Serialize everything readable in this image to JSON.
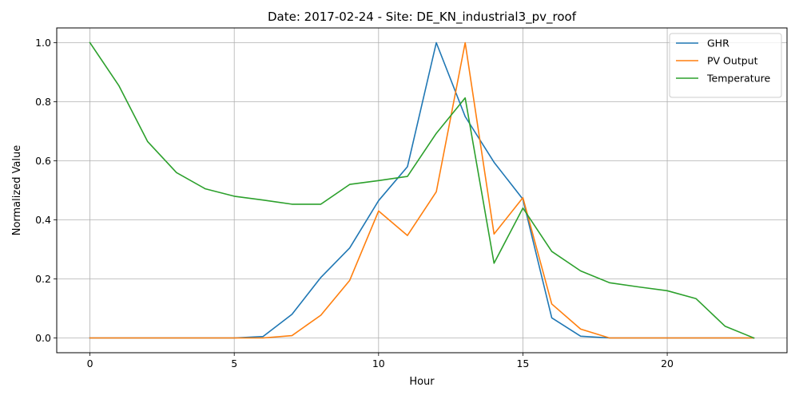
{
  "chart_data": {
    "type": "line",
    "title": "Date: 2017-02-24 - Site: DE_KN_industrial3_pv_roof",
    "xlabel": "Hour",
    "ylabel": "Normalized Value",
    "xlim": [
      -1.15,
      24.15
    ],
    "ylim": [
      -0.05,
      1.05
    ],
    "xticks": [
      0,
      5,
      10,
      15,
      20
    ],
    "yticks": [
      0.0,
      0.2,
      0.4,
      0.6,
      0.8,
      1.0
    ],
    "xtick_labels": [
      "0",
      "5",
      "10",
      "15",
      "20"
    ],
    "ytick_labels": [
      "0.0",
      "0.2",
      "0.4",
      "0.6",
      "0.8",
      "1.0"
    ],
    "grid": true,
    "legend_position": "top-right",
    "x": [
      0,
      1,
      2,
      3,
      4,
      5,
      6,
      7,
      8,
      9,
      10,
      11,
      12,
      13,
      14,
      15,
      16,
      17,
      18,
      19,
      20,
      21,
      22,
      23
    ],
    "series": [
      {
        "name": "GHR",
        "color": "#1f77b4",
        "values": [
          0,
          0,
          0,
          0,
          0,
          0,
          0.005,
          0.08,
          0.205,
          0.305,
          0.465,
          0.58,
          1.0,
          0.75,
          0.595,
          0.47,
          0.068,
          0.006,
          0,
          0,
          0,
          0,
          0,
          0
        ]
      },
      {
        "name": "PV Output",
        "color": "#ff7f0e",
        "values": [
          0,
          0,
          0,
          0,
          0,
          0,
          0,
          0.008,
          0.077,
          0.195,
          0.43,
          0.347,
          0.495,
          1.0,
          0.352,
          0.475,
          0.115,
          0.03,
          0,
          0,
          0,
          0,
          0,
          0
        ]
      },
      {
        "name": "Temperature",
        "color": "#2ca02c",
        "values": [
          1.0,
          0.855,
          0.665,
          0.56,
          0.505,
          0.48,
          0.467,
          0.453,
          0.453,
          0.52,
          0.533,
          0.547,
          0.693,
          0.813,
          0.253,
          0.44,
          0.293,
          0.227,
          0.187,
          0.173,
          0.16,
          0.133,
          0.04,
          0
        ]
      }
    ]
  }
}
